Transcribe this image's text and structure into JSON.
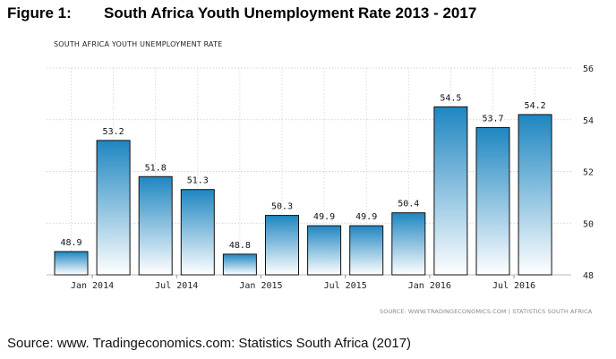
{
  "figure": {
    "number": "Figure 1:",
    "title": "South Africa Youth Unemployment Rate 2013 - 2017"
  },
  "chart_data": {
    "type": "bar",
    "title": "SOUTH AFRICA YOUTH UNEMPLOYMENT RATE",
    "xlabel": "",
    "ylabel": "",
    "series": [
      {
        "values": [
          48.9,
          53.2,
          51.8,
          51.3,
          48.8,
          50.3,
          49.9,
          49.9,
          50.4,
          54.5,
          53.7,
          54.2
        ]
      }
    ],
    "data_labels": [
      "48.9",
      "53.2",
      "51.8",
      "51.3",
      "48.8",
      "50.3",
      "49.9",
      "49.9",
      "50.4",
      "54.5",
      "53.7",
      "54.2"
    ],
    "x_tick_labels": [
      "Jan 2014",
      "Jul 2014",
      "Jan 2015",
      "Jul 2015",
      "Jan 2016",
      "Jul 2016"
    ],
    "x_tick_bar_index": [
      0,
      2,
      4,
      6,
      8,
      10
    ],
    "y_ticks": [
      48,
      50,
      52,
      54,
      56
    ],
    "ylim": [
      48,
      56
    ],
    "grid": true,
    "y_axis_side": "right",
    "bar_color_top": "#1e86c1",
    "bar_color_bottom": "#ffffff"
  },
  "source_note": "SOURCE: WWW.TRADINGECONOMICS.COM | STATISTICS SOUTH AFRICA",
  "caption": "Source: www. Tradingeconomics.com: Statistics South Africa (2017)"
}
